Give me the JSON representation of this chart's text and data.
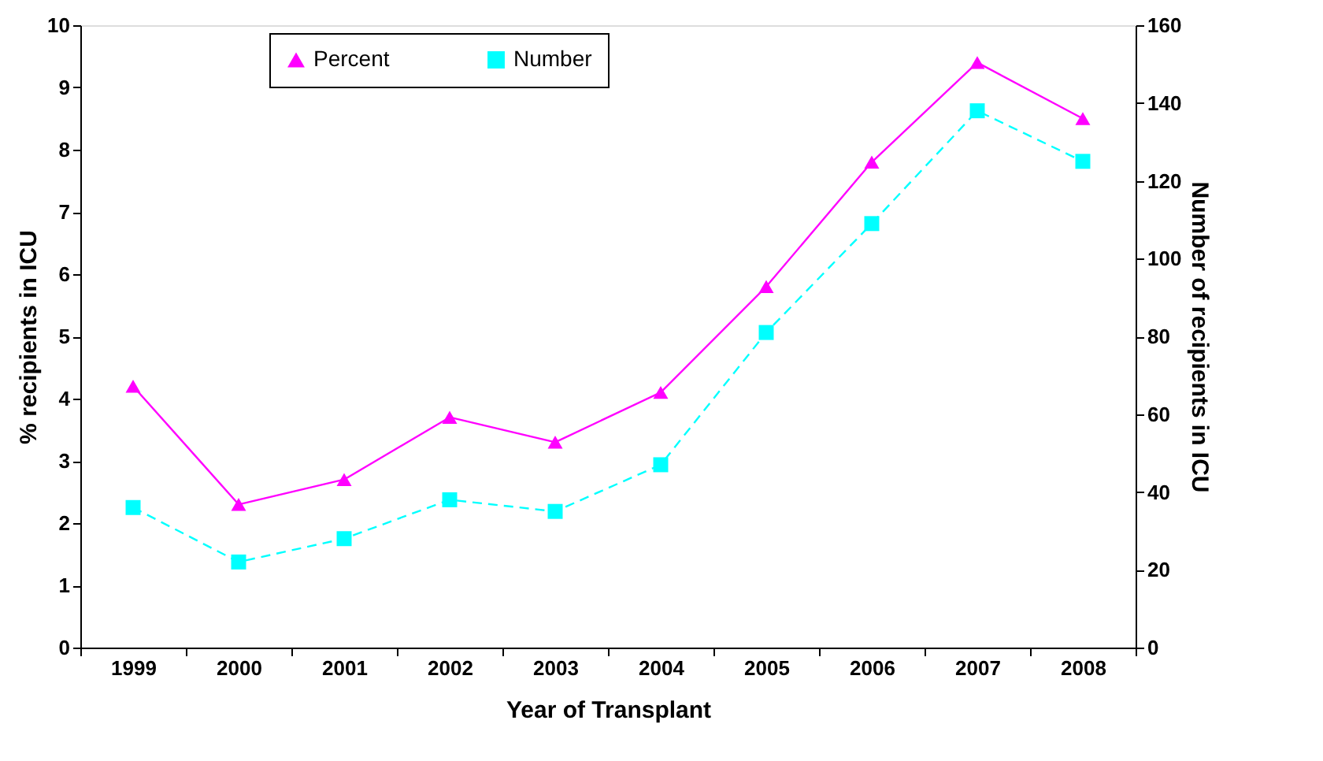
{
  "chart_data": {
    "type": "line",
    "xlabel": "Year of Transplant",
    "ylabel": "% recipients in ICU",
    "y2label": "Number of recipients in ICU",
    "categories": [
      "1999",
      "2000",
      "2001",
      "2002",
      "2003",
      "2004",
      "2005",
      "2006",
      "2007",
      "2008"
    ],
    "series": [
      {
        "name": "Percent",
        "color": "#ff00ff",
        "marker": "triangle",
        "line_style": "solid",
        "axis": "y",
        "values": [
          4.2,
          2.3,
          2.7,
          3.7,
          3.3,
          4.1,
          5.8,
          7.8,
          9.4,
          8.5
        ]
      },
      {
        "name": "Number",
        "color": "#00ffff",
        "marker": "square",
        "line_style": "dashed",
        "axis": "y2",
        "values": [
          36,
          22,
          28,
          38,
          35,
          47,
          81,
          109,
          138,
          125
        ]
      }
    ],
    "ylim": [
      0,
      10
    ],
    "yticks": [
      0,
      1,
      2,
      3,
      4,
      5,
      6,
      7,
      8,
      9,
      10
    ],
    "y2lim": [
      0,
      160
    ],
    "y2ticks": [
      0,
      20,
      40,
      60,
      80,
      100,
      120,
      140,
      160
    ],
    "grid": false,
    "legend": "top"
  }
}
